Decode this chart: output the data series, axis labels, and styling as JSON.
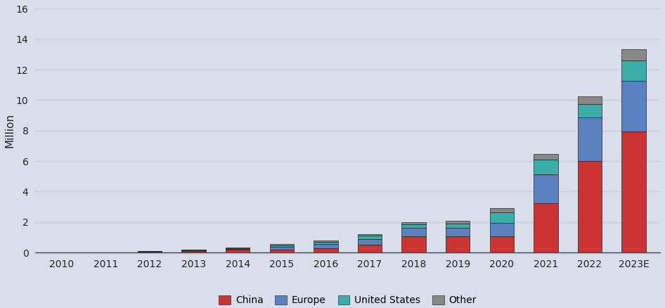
{
  "years": [
    "2010",
    "2011",
    "2012",
    "2013",
    "2014",
    "2015",
    "2016",
    "2017",
    "2018",
    "2019",
    "2020",
    "2021",
    "2022",
    "2023E"
  ],
  "china": [
    0.005,
    0.01,
    0.07,
    0.12,
    0.18,
    0.18,
    0.3,
    0.5,
    1.05,
    1.05,
    1.05,
    3.25,
    6.0,
    7.95
  ],
  "europe": [
    0.002,
    0.005,
    0.02,
    0.04,
    0.06,
    0.18,
    0.28,
    0.38,
    0.55,
    0.55,
    0.9,
    1.9,
    2.85,
    3.3
  ],
  "united_states": [
    0.001,
    0.002,
    0.01,
    0.03,
    0.04,
    0.12,
    0.12,
    0.22,
    0.25,
    0.3,
    0.7,
    0.95,
    0.9,
    1.35
  ],
  "other": [
    0.001,
    0.002,
    0.01,
    0.02,
    0.03,
    0.06,
    0.07,
    0.12,
    0.15,
    0.2,
    0.25,
    0.35,
    0.5,
    0.75
  ],
  "colors": {
    "china": "#CC3333",
    "europe": "#5B82C0",
    "united_states": "#3AADA8",
    "other": "#888888"
  },
  "ylabel": "Million",
  "ylim": [
    0,
    16
  ],
  "yticks": [
    0,
    2,
    4,
    6,
    8,
    10,
    12,
    14,
    16
  ],
  "background_color": "#D9DFEA",
  "grid_color": "#C8CCDA",
  "legend_labels": [
    "China",
    "Europe",
    "United States",
    "Other"
  ]
}
